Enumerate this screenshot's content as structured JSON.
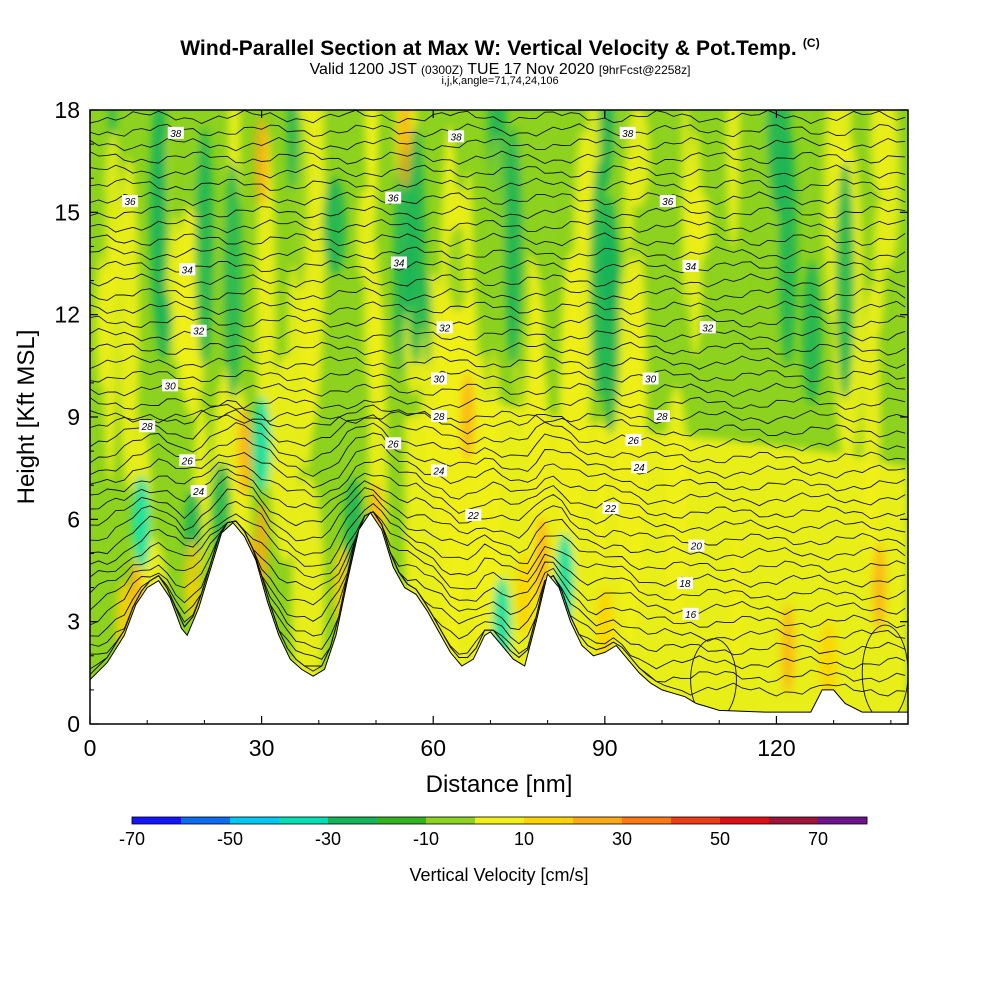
{
  "chart_data": {
    "type": "heatmap",
    "title": "Wind-Parallel Section at Max W: Vertical Velocity & Pot.Temp.",
    "title_mark": "(C)",
    "subtitle_a": "Valid 1200 JST",
    "subtitle_b": "(0300Z)",
    "subtitle_c": "TUE 17 Nov 2020",
    "subtitle_d": "[9hrFcst@2258z]",
    "subtitle2": "i,j,k,angle=71,74,24,106",
    "xlabel": "Distance [nm]",
    "ylabel": "Height [Kft MSL]",
    "xlim": [
      0,
      143
    ],
    "ylim": [
      0,
      18
    ],
    "xticks": [
      0,
      30,
      60,
      90,
      120
    ],
    "yticks": [
      0,
      3,
      6,
      9,
      12,
      15,
      18
    ],
    "colorbar_label": "Vertical Velocity [cm/s]",
    "colorbar_ticks": [
      -70,
      -50,
      -30,
      -10,
      10,
      30,
      50,
      70
    ],
    "colorbar_colors": [
      "#1414ff",
      "#0a6cf0",
      "#00c8f5",
      "#00e0b4",
      "#14b45a",
      "#32b41e",
      "#8cd21e",
      "#f0f014",
      "#ffd200",
      "#ffaa14",
      "#ff7814",
      "#f03c14",
      "#dc0f14",
      "#a0143c",
      "#6e148c"
    ],
    "contour_labels": [
      {
        "x": 15,
        "y": 17.3,
        "v": "38"
      },
      {
        "x": 64,
        "y": 17.2,
        "v": "38"
      },
      {
        "x": 94,
        "y": 17.3,
        "v": "38"
      },
      {
        "x": 7,
        "y": 15.3,
        "v": "36"
      },
      {
        "x": 53,
        "y": 15.4,
        "v": "36"
      },
      {
        "x": 101,
        "y": 15.3,
        "v": "36"
      },
      {
        "x": 17,
        "y": 13.3,
        "v": "34"
      },
      {
        "x": 54,
        "y": 13.5,
        "v": "34"
      },
      {
        "x": 105,
        "y": 13.4,
        "v": "34"
      },
      {
        "x": 19,
        "y": 11.5,
        "v": "32"
      },
      {
        "x": 62,
        "y": 11.6,
        "v": "32"
      },
      {
        "x": 108,
        "y": 11.6,
        "v": "32"
      },
      {
        "x": 14,
        "y": 9.9,
        "v": "30"
      },
      {
        "x": 61,
        "y": 10.1,
        "v": "30"
      },
      {
        "x": 98,
        "y": 10.1,
        "v": "30"
      },
      {
        "x": 10,
        "y": 8.7,
        "v": "28"
      },
      {
        "x": 61,
        "y": 9.0,
        "v": "28"
      },
      {
        "x": 100,
        "y": 9.0,
        "v": "28"
      },
      {
        "x": 17,
        "y": 7.7,
        "v": "26"
      },
      {
        "x": 53,
        "y": 8.2,
        "v": "26"
      },
      {
        "x": 95,
        "y": 8.3,
        "v": "26"
      },
      {
        "x": 19,
        "y": 6.8,
        "v": "24"
      },
      {
        "x": 61,
        "y": 7.4,
        "v": "24"
      },
      {
        "x": 96,
        "y": 7.5,
        "v": "24"
      },
      {
        "x": 67,
        "y": 6.1,
        "v": "22"
      },
      {
        "x": 91,
        "y": 6.3,
        "v": "22"
      },
      {
        "x": 106,
        "y": 5.2,
        "v": "20"
      },
      {
        "x": 104,
        "y": 4.1,
        "v": "18"
      },
      {
        "x": 105,
        "y": 3.2,
        "v": "16"
      }
    ],
    "terrain_profile": [
      [
        0,
        1.3
      ],
      [
        3,
        1.8
      ],
      [
        6,
        2.6
      ],
      [
        8,
        3.5
      ],
      [
        10,
        4.0
      ],
      [
        12,
        4.2
      ],
      [
        14,
        3.7
      ],
      [
        16,
        2.8
      ],
      [
        17,
        2.6
      ],
      [
        19,
        3.4
      ],
      [
        21,
        4.5
      ],
      [
        23,
        5.6
      ],
      [
        25,
        5.9
      ],
      [
        27,
        5.5
      ],
      [
        29,
        4.8
      ],
      [
        31,
        3.6
      ],
      [
        33,
        2.6
      ],
      [
        35,
        1.9
      ],
      [
        37,
        1.6
      ],
      [
        39,
        1.4
      ],
      [
        41,
        1.6
      ],
      [
        43,
        2.6
      ],
      [
        45,
        4.2
      ],
      [
        47,
        5.7
      ],
      [
        49,
        6.2
      ],
      [
        51,
        5.7
      ],
      [
        53,
        4.6
      ],
      [
        55,
        4.0
      ],
      [
        57,
        3.8
      ],
      [
        59,
        3.3
      ],
      [
        61,
        2.7
      ],
      [
        63,
        2.1
      ],
      [
        65,
        1.7
      ],
      [
        67,
        1.9
      ],
      [
        69,
        2.6
      ],
      [
        70,
        2.7
      ],
      [
        72,
        2.3
      ],
      [
        74,
        1.9
      ],
      [
        76,
        1.7
      ],
      [
        78,
        3.0
      ],
      [
        80,
        4.4
      ],
      [
        82,
        4.0
      ],
      [
        84,
        3.0
      ],
      [
        86,
        2.3
      ],
      [
        88,
        2.0
      ],
      [
        90,
        2.1
      ],
      [
        92,
        2.3
      ],
      [
        94,
        1.9
      ],
      [
        96,
        1.5
      ],
      [
        98,
        1.2
      ],
      [
        100,
        1.0
      ],
      [
        102,
        0.9
      ],
      [
        104,
        0.8
      ],
      [
        106,
        0.6
      ],
      [
        108,
        0.5
      ],
      [
        110,
        0.4
      ],
      [
        118,
        0.35
      ],
      [
        126,
        0.35
      ],
      [
        128,
        1.0
      ],
      [
        130,
        1.0
      ],
      [
        132,
        0.6
      ],
      [
        135,
        0.35
      ],
      [
        143,
        0.35
      ]
    ]
  }
}
